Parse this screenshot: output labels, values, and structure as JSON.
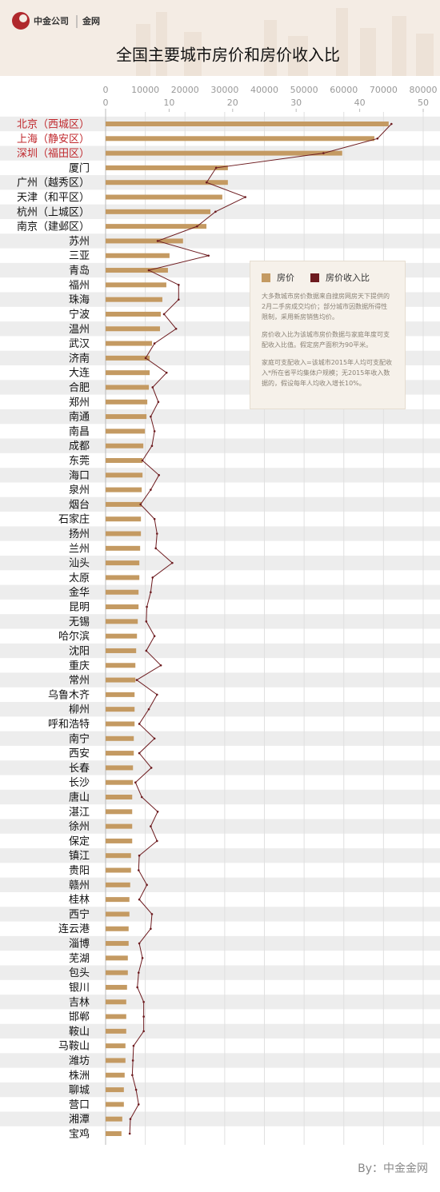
{
  "brand": {
    "company": "中金公司",
    "site": "金网"
  },
  "chart_data": {
    "type": "bar-line",
    "title": "全国主要城市房价和房价收入比",
    "categories": [
      "北京（西城区）",
      "上海（静安区）",
      "深圳（福田区）",
      "厦门",
      "广州（越秀区）",
      "天津（和平区）",
      "杭州（上城区）",
      "南京（建邺区）",
      "苏州",
      "三亚",
      "青岛",
      "福州",
      "珠海",
      "宁波",
      "温州",
      "武汉",
      "济南",
      "大连",
      "合肥",
      "郑州",
      "南通",
      "南昌",
      "成都",
      "东莞",
      "海口",
      "泉州",
      "烟台",
      "石家庄",
      "扬州",
      "兰州",
      "汕头",
      "太原",
      "金华",
      "昆明",
      "无锡",
      "哈尔滨",
      "沈阳",
      "重庆",
      "常州",
      "乌鲁木齐",
      "柳州",
      "呼和浩特",
      "南宁",
      "西安",
      "长春",
      "长沙",
      "唐山",
      "湛江",
      "徐州",
      "保定",
      "镇江",
      "贵阳",
      "赣州",
      "桂林",
      "西宁",
      "连云港",
      "淄博",
      "芜湖",
      "包头",
      "银川",
      "吉林",
      "邯郸",
      "鞍山",
      "马鞍山",
      "潍坊",
      "株洲",
      "聊城",
      "营口",
      "湘潭",
      "宝鸡"
    ],
    "series": [
      {
        "name": "房价",
        "color": "#c49a62",
        "axis": "x",
        "values": [
          71300,
          67700,
          59600,
          30800,
          30800,
          29400,
          26400,
          25400,
          19500,
          16100,
          15700,
          15300,
          14300,
          13900,
          13700,
          11700,
          11100,
          11100,
          10900,
          10500,
          10300,
          9900,
          9500,
          9300,
          9300,
          9100,
          9100,
          8900,
          8900,
          8700,
          8500,
          8500,
          8300,
          8300,
          8100,
          7900,
          7700,
          7500,
          7500,
          7300,
          7300,
          7300,
          7100,
          7100,
          6900,
          6900,
          6700,
          6700,
          6700,
          6700,
          6400,
          6400,
          6200,
          6000,
          6000,
          5800,
          5800,
          5600,
          5600,
          5400,
          5200,
          5200,
          5200,
          5000,
          5000,
          4800,
          4600,
          4600,
          4200,
          4000
        ]
      },
      {
        "name": "房价收入比",
        "color": "#6d1b1f",
        "axis": "x2",
        "values": [
          45.0,
          42.8,
          34.3,
          17.4,
          15.9,
          22.0,
          17.3,
          14.4,
          8.2,
          16.2,
          6.8,
          11.5,
          11.5,
          9.2,
          11.1,
          7.7,
          6.3,
          9.6,
          7.4,
          8.3,
          7.1,
          7.7,
          7.3,
          5.8,
          8.4,
          7.1,
          5.5,
          7.7,
          8.1,
          7.9,
          10.5,
          7.4,
          7.1,
          6.5,
          6.4,
          7.7,
          6.4,
          8.7,
          4.9,
          8.1,
          6.8,
          5.3,
          7.7,
          5.3,
          7.2,
          4.7,
          5.7,
          8.2,
          7.1,
          8.1,
          5.3,
          5.2,
          6.5,
          5.3,
          7.3,
          7.1,
          5.3,
          5.8,
          5.2,
          5.0,
          6.0,
          6.0,
          6.0,
          4.4,
          4.3,
          4.2,
          4.8,
          5.2,
          3.9,
          3.8
        ]
      }
    ],
    "xlim": [
      0,
      80000
    ],
    "xticks": [
      0,
      10000,
      20000,
      30000,
      40000,
      50000,
      60000,
      70000,
      80000
    ],
    "x2lim": [
      0,
      50
    ],
    "x2ticks": [
      0,
      10,
      20,
      30,
      40,
      50
    ],
    "grid": true,
    "highlight": {
      "color": "#c0282d",
      "count": 3
    },
    "notes": [
      "大多数城市房价数据来自搜房网房天下提供的2月二手房成交均价；部分城市因数据所得性限制，采用新房销售均价。",
      "房价收入比为该城市房价数据与家庭年度可支配收入比值。假定房产面积为90平米。",
      "家庭可支配收入=该城市2015年人均可支配收入*所在省平均集体户规模；无2015年收入数据的，假设每年人均收入增长10%。"
    ],
    "source": "By：中金金网"
  }
}
